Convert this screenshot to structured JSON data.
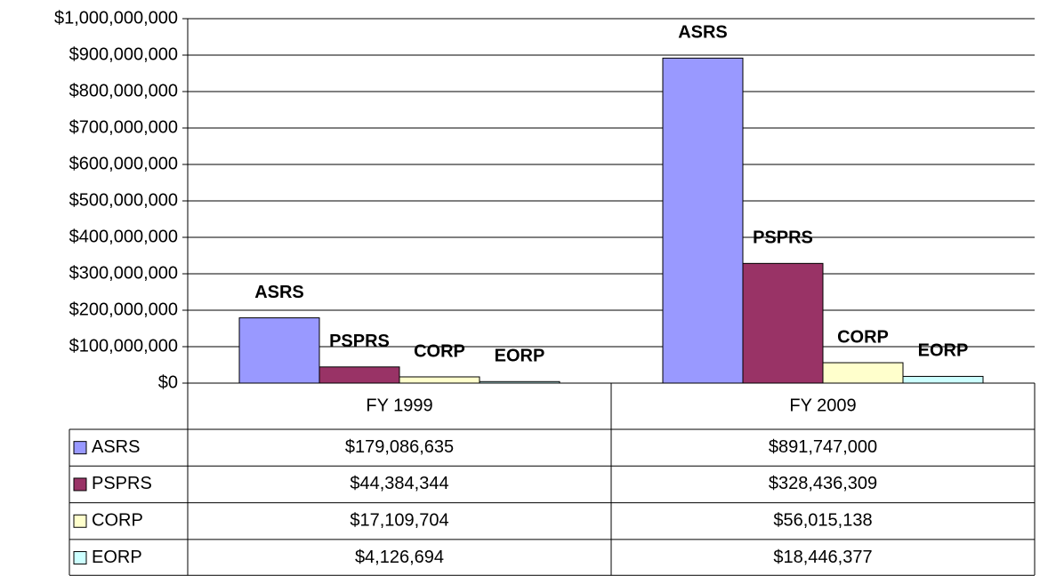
{
  "chart_data": {
    "type": "bar",
    "categories": [
      "FY 1999",
      "FY 2009"
    ],
    "series": [
      {
        "name": "ASRS",
        "color": "#9999ff",
        "values": [
          179086635,
          891747000
        ],
        "value_labels": [
          "$179,086,635",
          "$891,747,000"
        ]
      },
      {
        "name": "PSPRS",
        "color": "#993366",
        "values": [
          44384344,
          328436309
        ],
        "value_labels": [
          "$44,384,344",
          "$328,436,309"
        ]
      },
      {
        "name": "CORP",
        "color": "#ffffcc",
        "values": [
          17109704,
          56015138
        ],
        "value_labels": [
          "$17,109,704",
          "$56,015,138"
        ]
      },
      {
        "name": "EORP",
        "color": "#ccffff",
        "values": [
          4126694,
          18446377
        ],
        "value_labels": [
          "$4,126,694",
          "$18,446,377"
        ]
      }
    ],
    "ylim": [
      0,
      1000000000
    ],
    "yticks": [
      {
        "value": 0,
        "label": "$0"
      },
      {
        "value": 100000000,
        "label": "$100,000,000"
      },
      {
        "value": 200000000,
        "label": "$200,000,000"
      },
      {
        "value": 300000000,
        "label": "$300,000,000"
      },
      {
        "value": 400000000,
        "label": "$400,000,000"
      },
      {
        "value": 500000000,
        "label": "$500,000,000"
      },
      {
        "value": 600000000,
        "label": "$600,000,000"
      },
      {
        "value": 700000000,
        "label": "$700,000,000"
      },
      {
        "value": 800000000,
        "label": "$800,000,000"
      },
      {
        "value": 900000000,
        "label": "$900,000,000"
      },
      {
        "value": 1000000000,
        "label": "$1,000,000,000"
      }
    ],
    "grid": true
  }
}
